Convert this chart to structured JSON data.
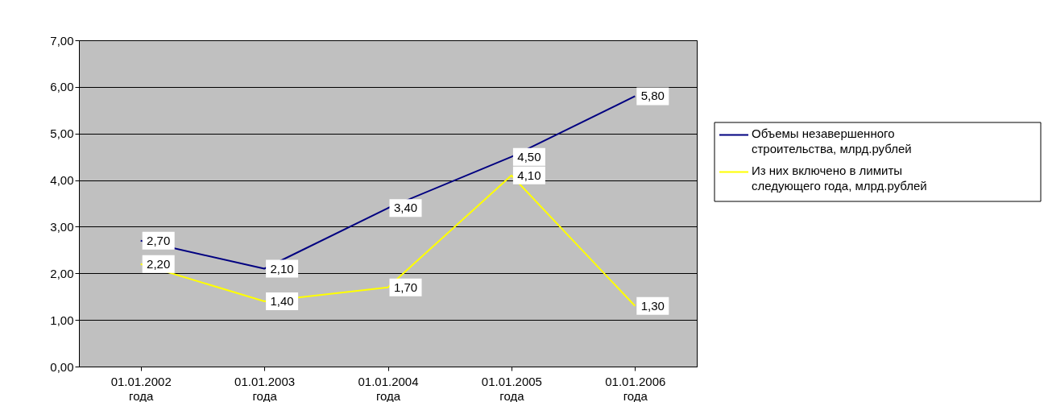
{
  "chart_data": {
    "type": "line",
    "categories": [
      "01.01.2002 года",
      "01.01.2003 года",
      "01.01.2004 года",
      "01.01.2005 года",
      "01.01.2006 года"
    ],
    "series": [
      {
        "name": "Объемы незавершенного строительства, млрд.рублей",
        "color": "#000080",
        "values": [
          2.7,
          2.1,
          3.4,
          4.5,
          5.8
        ],
        "value_labels": [
          "2,70",
          "2,10",
          "3,40",
          "4,50",
          "5,80"
        ]
      },
      {
        "name": "Из них включено в лимиты следующего года, млрд.рублей",
        "color": "#ffff00",
        "values": [
          2.2,
          1.4,
          1.7,
          4.1,
          1.3
        ],
        "value_labels": [
          "2,20",
          "1,40",
          "1,70",
          "4,10",
          "1,30"
        ]
      }
    ],
    "ylim": [
      0,
      7
    ],
    "yticks": [
      {
        "value": 0,
        "label": "0,00"
      },
      {
        "value": 1,
        "label": "1,00"
      },
      {
        "value": 2,
        "label": "2,00"
      },
      {
        "value": 3,
        "label": "3,00"
      },
      {
        "value": 4,
        "label": "4,00"
      },
      {
        "value": 5,
        "label": "5,00"
      },
      {
        "value": 6,
        "label": "6,00"
      },
      {
        "value": 7,
        "label": "7,00"
      }
    ],
    "grid": "y",
    "legend": "right",
    "marker": "none",
    "line_style": "solid"
  }
}
